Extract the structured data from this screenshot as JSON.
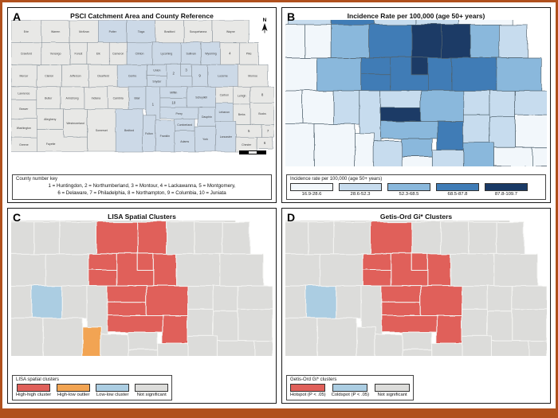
{
  "figure": {
    "frame_color": "#b0501d"
  },
  "panels": {
    "a": {
      "letter": "A",
      "title": "PSCI  Catchment Area and County Reference",
      "north_label": "N",
      "key_title": "County number key",
      "key_lines": [
        "1 = Huntingdon, 2 = Northumberland, 3 = Montour, 4 = Lackawanna, 5 = Montgomery,",
        "6 = Delaware, 7 = Philadelphia, 8 = Northampton, 9 = Columbia, 10 = Juniata"
      ],
      "catchment_color": "#ccd9e7",
      "non_catchment_color": "#e8e8e6"
    },
    "b": {
      "letter": "B",
      "title": "Incidence Rate per 100,000 (age 50+ years)",
      "legend_title": "Incidence rate per 100,000 (age 50+ years)",
      "classes": [
        {
          "label": "16.9-28.6",
          "color": "#f2f7fb"
        },
        {
          "label": "28.6-52.3",
          "color": "#c7dcee"
        },
        {
          "label": "52.3-68.5",
          "color": "#8ab8dc"
        },
        {
          "label": "68.5-87.8",
          "color": "#3f7cb6"
        },
        {
          "label": "87.8-109.7",
          "color": "#1a3a66"
        }
      ]
    },
    "c": {
      "letter": "C",
      "title": "LISA Spatial Clusters",
      "legend_title": "LISA spatial clusters",
      "classes": [
        {
          "label": "High-high cluster",
          "color": "#e0605a",
          "key": "hh"
        },
        {
          "label": "High-low outlier",
          "color": "#f2a452",
          "key": "hl"
        },
        {
          "label": "Low-low cluster",
          "color": "#abcde2",
          "key": "ll"
        },
        {
          "label": "Not significant",
          "color": "#dcdcda",
          "key": "ns"
        }
      ]
    },
    "d": {
      "letter": "D",
      "title": "Getis-Ord Gi* Clusters",
      "legend_title": "Getis-Ord Gi* clusters",
      "classes": [
        {
          "label": "Hotspot (P < .05)",
          "color": "#e0605a",
          "key": "hot"
        },
        {
          "label": "Coldspot (P < .05)",
          "color": "#abcde2",
          "key": "cold"
        },
        {
          "label": "Not significant",
          "color": "#dcdcda",
          "key": "ns"
        }
      ]
    }
  },
  "colors": {
    "blues": [
      "#f2f7fb",
      "#c7dcee",
      "#8ab8dc",
      "#3f7cb6",
      "#1a3a66"
    ],
    "lisa": {
      "hh": "#e0605a",
      "hl": "#f2a452",
      "ll": "#abcde2",
      "ns": "#dcdcda"
    },
    "gi": {
      "hot": "#e0605a",
      "cold": "#abcde2",
      "ns": "#dcdcda"
    },
    "stroke_a": "#8d969e",
    "stroke_b": "#51636f",
    "stroke_cd": "#f4f4f2"
  },
  "counties": [
    {
      "name": "Erie",
      "cat": false,
      "inc": 1,
      "lisa": "ns",
      "gi": "ns"
    },
    {
      "name": "Warren",
      "cat": false,
      "inc": 1,
      "lisa": "ns",
      "gi": "ns"
    },
    {
      "name": "McKean",
      "cat": false,
      "inc": 1,
      "lisa": "ns",
      "gi": "ns"
    },
    {
      "name": "Potter",
      "cat": true,
      "inc": 2,
      "lisa": "ns",
      "gi": "ns"
    },
    {
      "name": "Tioga",
      "cat": true,
      "inc": 4,
      "lisa": "ns",
      "gi": "ns"
    },
    {
      "name": "Bradford",
      "cat": false,
      "inc": 2,
      "lisa": "ns",
      "gi": "ns"
    },
    {
      "name": "Susquehanna",
      "cat": false,
      "inc": 2,
      "lisa": "ns",
      "gi": "ns"
    },
    {
      "name": "Wayne",
      "cat": false,
      "inc": 1,
      "lisa": "ns",
      "gi": "ns"
    },
    {
      "name": "Crawford",
      "cat": false,
      "inc": 1,
      "lisa": "ns",
      "gi": "ns"
    },
    {
      "name": "Venango",
      "cat": false,
      "inc": 1,
      "lisa": "ns",
      "gi": "ns"
    },
    {
      "name": "Forest",
      "cat": false,
      "inc": 1,
      "lisa": "ns",
      "gi": "ns"
    },
    {
      "name": "Elk",
      "cat": false,
      "inc": 1,
      "lisa": "ns",
      "gi": "ns"
    },
    {
      "name": "Cameron",
      "cat": false,
      "inc": 1,
      "lisa": "ns",
      "gi": "ns"
    },
    {
      "name": "Clinton",
      "cat": true,
      "inc": 3,
      "lisa": "ns",
      "gi": "ns"
    },
    {
      "name": "Lycoming",
      "cat": true,
      "inc": 4,
      "lisa": "hh",
      "gi": "hot"
    },
    {
      "name": "Sullivan",
      "cat": true,
      "inc": 5,
      "lisa": "hh",
      "gi": "ns"
    },
    {
      "name": "Wyoming",
      "cat": true,
      "inc": 5,
      "lisa": "ns",
      "gi": "ns"
    },
    {
      "name": "Lackawanna",
      "num": 4,
      "cat": false,
      "inc": 3,
      "lisa": "ns",
      "gi": "ns"
    },
    {
      "name": "Pike",
      "cat": false,
      "inc": 2,
      "lisa": "ns",
      "gi": "ns"
    },
    {
      "name": "Mercer",
      "cat": false,
      "inc": 1,
      "lisa": "ns",
      "gi": "ns"
    },
    {
      "name": "Clarion",
      "cat": false,
      "inc": 1,
      "lisa": "ns",
      "gi": "ns"
    },
    {
      "name": "Jefferson",
      "cat": false,
      "inc": 1,
      "lisa": "ns",
      "gi": "ns"
    },
    {
      "name": "Clearfield",
      "cat": false,
      "inc": 1,
      "lisa": "ns",
      "gi": "ns"
    },
    {
      "name": "Centre",
      "cat": true,
      "inc": 3,
      "lisa": "ns",
      "gi": "ns"
    },
    {
      "name": "Union",
      "cat": true,
      "inc": 4,
      "lisa": "hh",
      "gi": "hot"
    },
    {
      "name": "Snyder",
      "cat": true,
      "inc": 4,
      "lisa": "hh",
      "gi": "hot"
    },
    {
      "name": "Northumberland",
      "num": 2,
      "cat": true,
      "inc": 4,
      "lisa": "hh",
      "gi": "hot"
    },
    {
      "name": "Montour",
      "num": 3,
      "cat": true,
      "inc": 5,
      "lisa": "hh",
      "gi": "hot"
    },
    {
      "name": "Columbia",
      "num": 9,
      "cat": true,
      "inc": 4,
      "lisa": "hh",
      "gi": "hot"
    },
    {
      "name": "Luzerne",
      "cat": true,
      "inc": 4,
      "lisa": "ns",
      "gi": "ns"
    },
    {
      "name": "Monroe",
      "cat": false,
      "inc": 3,
      "lisa": "ns",
      "gi": "ns"
    },
    {
      "name": "Lawrence",
      "cat": false,
      "inc": 1,
      "lisa": "ns",
      "gi": "ns"
    },
    {
      "name": "Beaver",
      "cat": false,
      "inc": 1,
      "lisa": "ns",
      "gi": "ns"
    },
    {
      "name": "Washington",
      "cat": false,
      "inc": 1,
      "lisa": "ns",
      "gi": "ns"
    },
    {
      "name": "Greene",
      "cat": false,
      "inc": 1,
      "lisa": "ns",
      "gi": "ns"
    },
    {
      "name": "Butler",
      "cat": false,
      "inc": 1,
      "lisa": "ns",
      "gi": "ns"
    },
    {
      "name": "Armstrong",
      "cat": false,
      "inc": 1,
      "lisa": "ns",
      "gi": "ns"
    },
    {
      "name": "Indiana",
      "cat": false,
      "inc": 1,
      "lisa": "ns",
      "gi": "ns"
    },
    {
      "name": "Cambria",
      "cat": false,
      "inc": 1,
      "lisa": "ll",
      "gi": "cold"
    },
    {
      "name": "Blair",
      "cat": true,
      "inc": 2,
      "lisa": "ns",
      "gi": "ns"
    },
    {
      "name": "Huntingdon",
      "num": 1,
      "cat": true,
      "inc": 2,
      "lisa": "ns",
      "gi": "ns"
    },
    {
      "name": "Mifflin",
      "cat": true,
      "inc": 2,
      "lisa": "hh",
      "gi": "hot"
    },
    {
      "name": "Juniata",
      "num": 10,
      "cat": true,
      "inc": 5,
      "lisa": "hh",
      "gi": "hot"
    },
    {
      "name": "Perry",
      "cat": true,
      "inc": 3,
      "lisa": "hh",
      "gi": "hot"
    },
    {
      "name": "Cumberland",
      "cat": true,
      "inc": 3,
      "lisa": "ns",
      "gi": "ns"
    },
    {
      "name": "Schuylkill",
      "cat": true,
      "inc": 3,
      "lisa": "hh",
      "gi": "hot"
    },
    {
      "name": "Carbon",
      "cat": false,
      "inc": 2,
      "lisa": "ns",
      "gi": "ns"
    },
    {
      "name": "Lehigh",
      "cat": false,
      "inc": 2,
      "lisa": "ns",
      "gi": "ns"
    },
    {
      "name": "Northampton",
      "num": 8,
      "cat": false,
      "inc": 2,
      "lisa": "ns",
      "gi": "ns"
    },
    {
      "name": "Dauphin",
      "cat": true,
      "inc": 4,
      "lisa": "hh",
      "gi": "hot"
    },
    {
      "name": "Lebanon",
      "cat": true,
      "inc": 2,
      "lisa": "ns",
      "gi": "ns"
    },
    {
      "name": "Berks",
      "cat": false,
      "inc": 2,
      "lisa": "ns",
      "gi": "ns"
    },
    {
      "name": "Bucks",
      "cat": false,
      "inc": 1,
      "lisa": "ns",
      "gi": "ns"
    },
    {
      "name": "Montgomery",
      "num": 5,
      "cat": false,
      "inc": 1,
      "lisa": "ns",
      "gi": "ns"
    },
    {
      "name": "Philadelphia",
      "num": 7,
      "cat": false,
      "inc": 1,
      "lisa": "ns",
      "gi": "ns"
    },
    {
      "name": "Chester",
      "cat": false,
      "inc": 1,
      "lisa": "ns",
      "gi": "ns"
    },
    {
      "name": "Delaware",
      "num": 6,
      "cat": false,
      "inc": 1,
      "lisa": "ns",
      "gi": "ns"
    },
    {
      "name": "Lancaster",
      "cat": true,
      "inc": 3,
      "lisa": "ns",
      "gi": "ns"
    },
    {
      "name": "York",
      "cat": true,
      "inc": 2,
      "lisa": "ns",
      "gi": "ns"
    },
    {
      "name": "Adams",
      "cat": true,
      "inc": 1,
      "lisa": "ns",
      "gi": "ns"
    },
    {
      "name": "Franklin",
      "cat": true,
      "inc": 2,
      "lisa": "ns",
      "gi": "ns"
    },
    {
      "name": "Fulton",
      "cat": true,
      "inc": 1,
      "lisa": "hl",
      "gi": "ns"
    },
    {
      "name": "Bedford",
      "cat": true,
      "inc": 1,
      "lisa": "ns",
      "gi": "ns"
    },
    {
      "name": "Somerset",
      "cat": false,
      "inc": 1,
      "lisa": "ns",
      "gi": "ns"
    },
    {
      "name": "Allegheny",
      "cat": false,
      "inc": 1,
      "lisa": "ns",
      "gi": "ns"
    },
    {
      "name": "Westmoreland",
      "cat": false,
      "inc": 1,
      "lisa": "ns",
      "gi": "ns"
    },
    {
      "name": "Fayette",
      "cat": false,
      "inc": 1,
      "lisa": "ns",
      "gi": "ns"
    }
  ]
}
